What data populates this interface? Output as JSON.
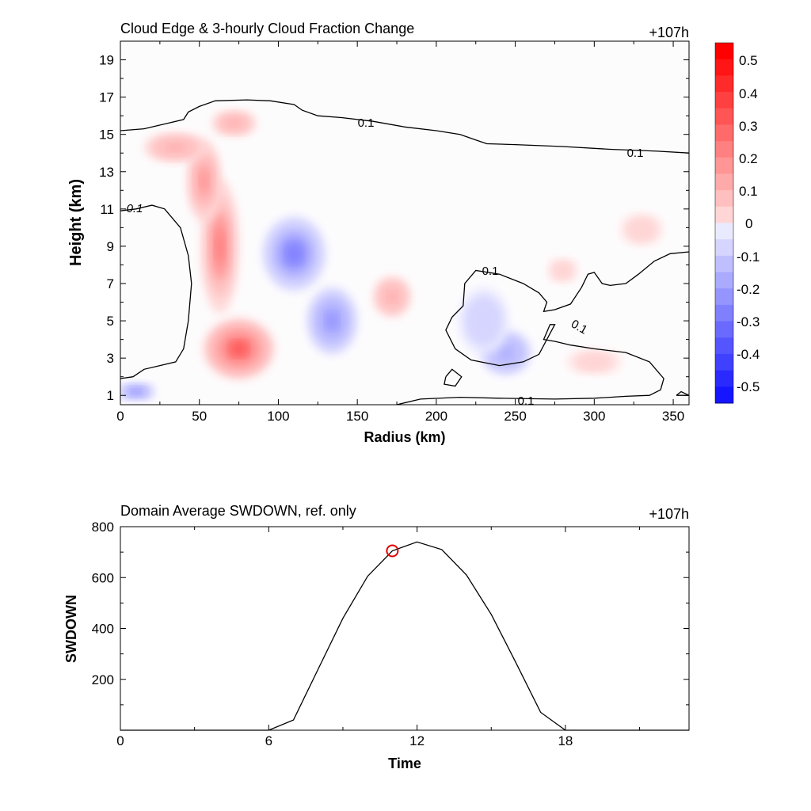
{
  "top": {
    "title": "Cloud Edge & 3-hourly Cloud Fraction Change",
    "time_tag": "+107h",
    "xlabel": "Radius (km)",
    "ylabel": "Height (km)"
  },
  "bottom": {
    "title": "Domain Average SWDOWN, ref. only",
    "time_tag": "+107h",
    "xlabel": "Time",
    "ylabel": "SWDOWN"
  },
  "colorbar": {
    "labels": [
      "0.5",
      "0.4",
      "0.3",
      "0.2",
      "0.1",
      "0",
      "-0.1",
      "-0.2",
      "-0.3",
      "-0.4",
      "-0.5"
    ],
    "colors_pos": [
      "#ffffff",
      "#ffeaea",
      "#ffd5d5",
      "#ffbfbf",
      "#ffaaaa",
      "#ff9595",
      "#ff8080",
      "#ff6a6a",
      "#ff5555",
      "#ff4040",
      "#ff2a2a",
      "#ff1515",
      "#ff0000"
    ],
    "colors_neg": [
      "#eaeaff",
      "#d5d5ff",
      "#bfbfff",
      "#aaaaff",
      "#9595ff",
      "#8080ff",
      "#6a6aff",
      "#5555ff",
      "#4040ff",
      "#2a2aff",
      "#1515ff",
      "#0000ff"
    ]
  },
  "chart_data": [
    {
      "type": "heatmap",
      "title": "Cloud Edge & 3-hourly Cloud Fraction Change",
      "xlabel": "Radius (km)",
      "ylabel": "Height (km)",
      "xlim": [
        0,
        360
      ],
      "ylim": [
        0.5,
        20
      ],
      "x_ticks": [
        0,
        50,
        100,
        150,
        200,
        250,
        300,
        350
      ],
      "y_ticks": [
        1,
        3,
        5,
        7,
        9,
        11,
        13,
        15,
        17,
        19
      ],
      "value_range": [
        -0.5,
        0.5
      ],
      "features": [
        {
          "x": 75,
          "y": 3.5,
          "value": 0.3
        },
        {
          "x": 63,
          "y": 9.0,
          "value": 0.22
        },
        {
          "x": 53,
          "y": 12.5,
          "value": 0.2
        },
        {
          "x": 35,
          "y": 14.3,
          "value": 0.15
        },
        {
          "x": 72,
          "y": 15.6,
          "value": 0.15
        },
        {
          "x": 172,
          "y": 6.3,
          "value": 0.15
        },
        {
          "x": 330,
          "y": 9.9,
          "value": 0.05
        },
        {
          "x": 280,
          "y": 7.7,
          "value": 0.05
        },
        {
          "x": 300,
          "y": 2.8,
          "value": 0.05
        },
        {
          "x": 110,
          "y": 8.6,
          "value": -0.22
        },
        {
          "x": 134,
          "y": 5.0,
          "value": -0.2
        },
        {
          "x": 244,
          "y": 3.3,
          "value": -0.15
        },
        {
          "x": 10,
          "y": 1.2,
          "value": -0.2
        },
        {
          "x": 230,
          "y": 5.0,
          "value": -0.05
        }
      ],
      "contour_level": 0.1,
      "contour_labels": [
        "0.1",
        "0.1",
        "0.1",
        "0.1",
        "0.1",
        "0.1"
      ],
      "contours": [
        [
          [
            0,
            15.2
          ],
          [
            15,
            15.3
          ],
          [
            30,
            15.6
          ],
          [
            40,
            15.8
          ],
          [
            43,
            16.2
          ],
          [
            50,
            16.5
          ],
          [
            60,
            16.8
          ],
          [
            80,
            16.85
          ],
          [
            95,
            16.8
          ],
          [
            110,
            16.6
          ],
          [
            115,
            16.3
          ],
          [
            125,
            16.0
          ],
          [
            140,
            15.9
          ],
          [
            160,
            15.7
          ],
          [
            180,
            15.4
          ],
          [
            200,
            15.2
          ],
          [
            215,
            15.0
          ],
          [
            225,
            14.7
          ],
          [
            232,
            14.5
          ],
          [
            250,
            14.45
          ],
          [
            280,
            14.35
          ],
          [
            310,
            14.2
          ],
          [
            340,
            14.1
          ],
          [
            360,
            14.0
          ]
        ],
        [
          [
            0,
            10.9
          ],
          [
            10,
            11.0
          ],
          [
            20,
            11.2
          ],
          [
            28,
            11.0
          ],
          [
            38,
            10.0
          ],
          [
            43,
            8.5
          ],
          [
            45,
            7.0
          ],
          [
            43,
            5.0
          ],
          [
            40,
            3.5
          ],
          [
            35,
            2.8
          ],
          [
            25,
            2.6
          ],
          [
            15,
            2.4
          ],
          [
            8,
            2.0
          ],
          [
            0,
            1.9
          ]
        ],
        [
          [
            175,
            0.5
          ],
          [
            190,
            0.8
          ],
          [
            215,
            0.9
          ],
          [
            240,
            0.85
          ],
          [
            275,
            0.8
          ],
          [
            300,
            0.85
          ],
          [
            320,
            0.95
          ],
          [
            335,
            1.0
          ],
          [
            342,
            1.3
          ],
          [
            344,
            1.9
          ],
          [
            335,
            2.8
          ],
          [
            320,
            3.3
          ],
          [
            300,
            3.5
          ],
          [
            285,
            3.7
          ],
          [
            275,
            3.9
          ],
          [
            268,
            4.0
          ],
          [
            272,
            4.8
          ],
          [
            275,
            4.8
          ],
          [
            270,
            4.0
          ],
          [
            265,
            3.2
          ],
          [
            255,
            2.8
          ],
          [
            240,
            2.6
          ],
          [
            222,
            2.9
          ],
          [
            212,
            3.5
          ],
          [
            206,
            4.5
          ],
          [
            210,
            5.2
          ],
          [
            217,
            5.8
          ],
          [
            218,
            7.0
          ],
          [
            225,
            7.7
          ],
          [
            240,
            7.5
          ],
          [
            255,
            7.0
          ],
          [
            265,
            6.5
          ],
          [
            270,
            6.0
          ],
          [
            268,
            5.5
          ],
          [
            275,
            5.6
          ],
          [
            285,
            5.9
          ],
          [
            292,
            6.8
          ],
          [
            296,
            7.5
          ],
          [
            300,
            7.6
          ],
          [
            305,
            7.0
          ],
          [
            310,
            6.9
          ],
          [
            320,
            7.0
          ],
          [
            328,
            7.5
          ],
          [
            338,
            8.2
          ],
          [
            348,
            8.6
          ],
          [
            360,
            8.7
          ]
        ],
        [
          [
            206,
            2.0
          ],
          [
            210,
            2.4
          ],
          [
            216,
            2.0
          ],
          [
            212,
            1.5
          ],
          [
            205,
            1.6
          ],
          [
            206,
            2.0
          ]
        ],
        [
          [
            352,
            1.0
          ],
          [
            355,
            1.2
          ],
          [
            360,
            1.0
          ],
          [
            352,
            1.0
          ]
        ]
      ]
    },
    {
      "type": "line",
      "title": "Domain Average SWDOWN, ref. only",
      "xlabel": "Time",
      "ylabel": "SWDOWN",
      "xlim": [
        0,
        23
      ],
      "ylim": [
        0,
        800
      ],
      "x_ticks": [
        0,
        6,
        12,
        18
      ],
      "y_ticks": [
        200,
        400,
        600,
        800
      ],
      "x": [
        0,
        1,
        2,
        3,
        4,
        5,
        6,
        7,
        8,
        9,
        10,
        11,
        12,
        13,
        14,
        15,
        16,
        17,
        18,
        19,
        20,
        21,
        22,
        23
      ],
      "y": [
        0,
        0,
        0,
        0,
        0,
        0,
        0,
        40,
        240,
        440,
        605,
        705,
        740,
        710,
        610,
        455,
        265,
        70,
        0,
        0,
        0,
        0,
        0,
        0
      ],
      "marker": {
        "x": 11,
        "y": 705
      }
    }
  ]
}
